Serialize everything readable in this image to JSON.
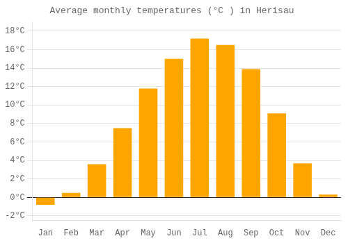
{
  "chart_data": {
    "type": "bar",
    "title": "Average monthly temperatures (°C ) in Herisau",
    "categories": [
      "Jan",
      "Feb",
      "Mar",
      "Apr",
      "May",
      "Jun",
      "Jul",
      "Aug",
      "Sep",
      "Oct",
      "Nov",
      "Dec"
    ],
    "values": [
      -0.8,
      0.5,
      3.6,
      7.5,
      11.8,
      15.0,
      17.2,
      16.5,
      13.9,
      9.1,
      3.7,
      0.3
    ],
    "color": "#FFA500",
    "ylim": [
      -2.5,
      19
    ],
    "yticks": [
      {
        "value": -2,
        "label": "-2°C"
      },
      {
        "value": 0,
        "label": "0°C"
      },
      {
        "value": 2,
        "label": "2°C"
      },
      {
        "value": 4,
        "label": "4°C"
      },
      {
        "value": 6,
        "label": "6°C"
      },
      {
        "value": 8,
        "label": "8°C"
      },
      {
        "value": 10,
        "label": "10°C"
      },
      {
        "value": 12,
        "label": "12°C"
      },
      {
        "value": 14,
        "label": "14°C"
      },
      {
        "value": 16,
        "label": "16°C"
      },
      {
        "value": 18,
        "label": "18°C"
      }
    ],
    "grid": true
  }
}
